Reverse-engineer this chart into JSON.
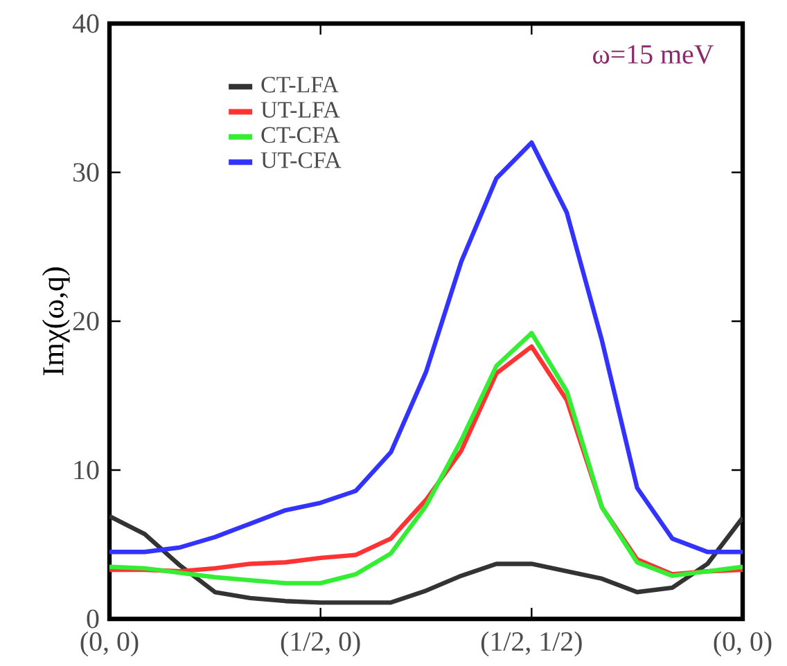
{
  "chart_data": {
    "type": "line",
    "ylabel": "Imχ(ω,q)",
    "annotations": [
      "ω=15 meV"
    ],
    "categories": [
      "(0, 0)",
      null,
      null,
      null,
      null,
      null,
      "(1/2, 0)",
      null,
      null,
      null,
      null,
      null,
      "(1/2, 1/2)",
      null,
      null,
      null,
      null,
      null,
      "(0, 0)"
    ],
    "ylim": [
      0,
      40
    ],
    "yticks": [
      0,
      10,
      20,
      30,
      40
    ],
    "legend": "top left",
    "marker": "none",
    "line_style": "solid",
    "series": [
      {
        "name": "CT-LFA",
        "color": "#333333",
        "values": [
          6.9,
          5.7,
          3.6,
          1.8,
          1.4,
          1.2,
          1.1,
          1.1,
          1.1,
          1.9,
          2.9,
          3.7,
          3.7,
          3.2,
          2.7,
          1.8,
          2.1,
          3.7,
          6.8
        ]
      },
      {
        "name": "UT-LFA",
        "color": "#ff3333",
        "values": [
          3.3,
          3.3,
          3.2,
          3.4,
          3.7,
          3.8,
          4.1,
          4.3,
          5.4,
          8.0,
          11.3,
          16.5,
          18.3,
          14.7,
          7.5,
          4.0,
          3.0,
          3.2,
          3.3
        ]
      },
      {
        "name": "CT-CFA",
        "color": "#33ee33",
        "values": [
          3.5,
          3.4,
          3.1,
          2.8,
          2.6,
          2.4,
          2.4,
          3.0,
          4.4,
          7.6,
          12.0,
          17.0,
          19.2,
          15.3,
          7.5,
          3.8,
          2.9,
          3.2,
          3.5
        ]
      },
      {
        "name": "UT-CFA",
        "color": "#3333ff",
        "values": [
          4.5,
          4.5,
          4.8,
          5.5,
          6.4,
          7.3,
          7.8,
          8.6,
          11.2,
          16.6,
          24,
          29.6,
          32,
          27.3,
          18.7,
          8.8,
          5.4,
          4.5,
          4.5
        ]
      }
    ]
  }
}
